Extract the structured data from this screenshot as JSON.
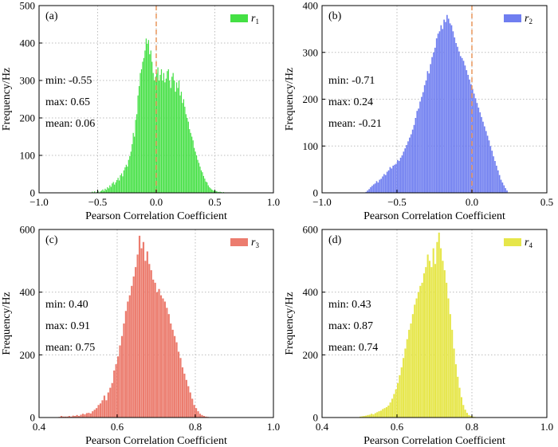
{
  "chart_data": [
    {
      "type": "bar",
      "panel_label": "(a)",
      "legend_symbol": "r",
      "legend_sub": "1",
      "color": "#44e044",
      "xlabel": "Pearson Correlation Coefficient",
      "ylabel": "Frequency/Hz",
      "xlim": [
        -1.0,
        1.0
      ],
      "ylim": [
        0,
        500
      ],
      "xticks": [
        -1.0,
        -0.5,
        0.0,
        0.5,
        1.0
      ],
      "xtick_labels": [
        "−1.0",
        "−0.5",
        "0.0",
        "0.5",
        "1.0"
      ],
      "yticks": [
        0,
        100,
        200,
        300,
        400,
        500
      ],
      "ytick_labels": [
        "0",
        "100",
        "200",
        "300",
        "400",
        "500"
      ],
      "vline": 0.0,
      "stats": [
        "min: -0.55",
        "max: 0.65",
        "mean: 0.06"
      ],
      "bin_start": -0.55,
      "bin_width": 0.01,
      "values": [
        3,
        0,
        4,
        0,
        2,
        5,
        0,
        4,
        6,
        9,
        5,
        11,
        8,
        15,
        12,
        20,
        16,
        25,
        29,
        22,
        28,
        34,
        40,
        33,
        47,
        52,
        44,
        60,
        68,
        75,
        70,
        88,
        98,
        110,
        130,
        160,
        150,
        195,
        210,
        260,
        285,
        320,
        330,
        350,
        360,
        380,
        412,
        398,
        408,
        370,
        380,
        350,
        320,
        300,
        310,
        320,
        335,
        300,
        315,
        330,
        300,
        320,
        295,
        305,
        325,
        330,
        300,
        280,
        310,
        320,
        300,
        270,
        295,
        280,
        300,
        260,
        270,
        240,
        250,
        230,
        210,
        200,
        190,
        170,
        160,
        150,
        140,
        120,
        110,
        100,
        88,
        80,
        70,
        60,
        55,
        45,
        38,
        30,
        28,
        20,
        15,
        12,
        9,
        7,
        5,
        5,
        4,
        3,
        2,
        3,
        2,
        1,
        2,
        1,
        1,
        1,
        0,
        1,
        0,
        1
      ]
    },
    {
      "type": "bar",
      "panel_label": "(b)",
      "legend_symbol": "r",
      "legend_sub": "2",
      "color": "#6f7ef0",
      "xlabel": "Pearson Correlation Coefficient",
      "ylabel": "Frequency/Hz",
      "xlim": [
        -1.0,
        0.5
      ],
      "ylim": [
        0,
        400
      ],
      "xticks": [
        -1.0,
        -0.5,
        0.0,
        0.5
      ],
      "xtick_labels": [
        "−1.0",
        "−0.5",
        "0.0",
        "0.5"
      ],
      "yticks": [
        0,
        100,
        200,
        300,
        400
      ],
      "ytick_labels": [
        "0",
        "100",
        "200",
        "300",
        "400"
      ],
      "vline": 0.0,
      "stats": [
        "min: -0.71",
        "max: 0.24",
        "mean: -0.21"
      ],
      "bin_start": -0.71,
      "bin_width": 0.01,
      "values": [
        2,
        5,
        8,
        12,
        15,
        18,
        20,
        25,
        22,
        28,
        30,
        35,
        40,
        38,
        45,
        48,
        55,
        52,
        58,
        60,
        62,
        70,
        68,
        75,
        80,
        88,
        95,
        102,
        110,
        118,
        125,
        135,
        145,
        160,
        175,
        180,
        195,
        205,
        215,
        230,
        240,
        260,
        255,
        275,
        290,
        300,
        310,
        330,
        340,
        345,
        358,
        350,
        370,
        365,
        380,
        372,
        362,
        358,
        345,
        332,
        320,
        312,
        302,
        292,
        288,
        282,
        272,
        262,
        252,
        242,
        232,
        222,
        212,
        202,
        192,
        182,
        172,
        162,
        152,
        142,
        132,
        122,
        112,
        100,
        90,
        78,
        68,
        58,
        48,
        38,
        28,
        22,
        16,
        10,
        5
      ]
    },
    {
      "type": "bar",
      "panel_label": "(c)",
      "legend_symbol": "r",
      "legend_sub": "3",
      "color": "#ec7c6e",
      "xlabel": "Pearson Correlation Coefficient",
      "ylabel": "Frequency/Hz",
      "xlim": [
        0.4,
        1.0
      ],
      "ylim": [
        0,
        600
      ],
      "xticks": [
        0.4,
        0.6,
        0.8,
        1.0
      ],
      "xtick_labels": [
        "0.4",
        "0.6",
        "0.8",
        "1.0"
      ],
      "yticks": [
        0,
        200,
        400,
        600
      ],
      "ytick_labels": [
        "0",
        "200",
        "400",
        "600"
      ],
      "vline": null,
      "stats": [
        "min: 0.40",
        "max: 0.91",
        "mean: 0.75"
      ],
      "bin_start": 0.4,
      "bin_width": 0.005,
      "values": [
        0,
        0,
        0,
        0,
        0,
        0,
        0,
        0,
        0,
        0,
        2,
        5,
        3,
        3,
        3,
        5,
        3,
        6,
        5,
        8,
        5,
        9,
        12,
        10,
        14,
        15,
        13,
        20,
        25,
        30,
        40,
        45,
        55,
        70,
        55,
        80,
        95,
        110,
        150,
        170,
        195,
        230,
        260,
        300,
        340,
        370,
        390,
        420,
        450,
        480,
        520,
        580,
        540,
        560,
        500,
        530,
        490,
        470,
        440,
        430,
        400,
        410,
        390,
        380,
        370,
        350,
        330,
        300,
        280,
        260,
        240,
        210,
        190,
        160,
        140,
        120,
        100,
        80,
        60,
        40,
        30,
        20,
        12,
        8,
        5,
        3,
        2
      ]
    },
    {
      "type": "bar",
      "panel_label": "(d)",
      "legend_symbol": "r",
      "legend_sub": "4",
      "color": "#e6e64a",
      "xlabel": "Pearson Correlation Coefficient",
      "ylabel": "Frequency/Hz",
      "xlim": [
        0.4,
        1.0
      ],
      "ylim": [
        0,
        600
      ],
      "xticks": [
        0.4,
        0.6,
        0.8,
        1.0
      ],
      "xtick_labels": [
        "0.4",
        "0.6",
        "0.8",
        "1.0"
      ],
      "yticks": [
        0,
        200,
        400,
        600
      ],
      "ytick_labels": [
        "0",
        "200",
        "400",
        "600"
      ],
      "vline": null,
      "stats": [
        "min: 0.43",
        "max: 0.87",
        "mean: 0.74"
      ],
      "bin_start": 0.43,
      "bin_width": 0.005,
      "values": [
        0,
        0,
        0,
        0,
        0,
        0,
        0,
        0,
        0,
        0,
        0,
        0,
        0,
        0,
        3,
        4,
        5,
        6,
        8,
        9,
        12,
        10,
        14,
        17,
        20,
        22,
        27,
        30,
        33,
        38,
        48,
        60,
        75,
        90,
        110,
        135,
        160,
        190,
        220,
        250,
        280,
        300,
        330,
        360,
        380,
        400,
        420,
        430,
        460,
        480,
        520,
        500,
        480,
        540,
        490,
        560,
        590,
        540,
        500,
        470,
        430,
        380,
        330,
        280,
        220,
        170,
        130,
        95,
        65,
        40,
        25,
        15,
        8,
        5,
        3,
        2,
        1,
        1
      ]
    }
  ]
}
